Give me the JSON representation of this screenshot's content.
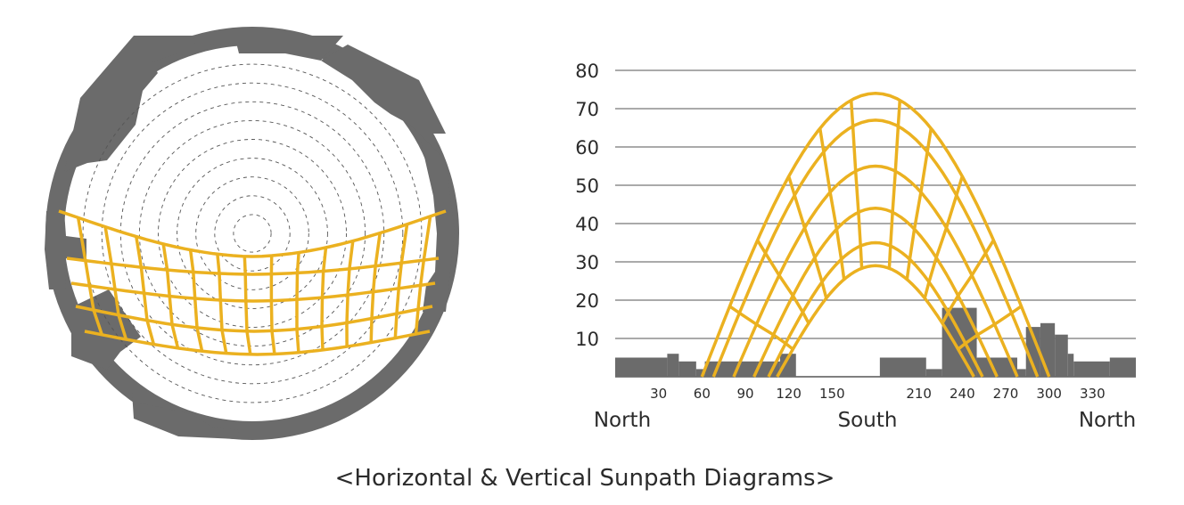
{
  "caption": "<Horizontal & Vertical Sunpath Diagrams>",
  "colors": {
    "sunpath": "#ebb120",
    "obstruction": "#6b6b6b",
    "ring": "#6b6b6b",
    "gridline": "#555555",
    "altitude_circles": "#555555"
  },
  "chart_data": [
    {
      "type": "diagram",
      "projection": "horizontal (polar) sunpath",
      "altitude_circle_count": 9,
      "sun_paths": 5,
      "hour_lines": 15,
      "obstruction": "surrounding buildings shown as grey silhouette around the sky dome"
    },
    {
      "type": "line",
      "projection": "vertical (cylindrical) sunpath",
      "ylim": [
        0,
        80
      ],
      "yticks": [
        "10",
        "20",
        "30",
        "40",
        "50",
        "60",
        "70",
        "80"
      ],
      "xticks": [
        "30",
        "60",
        "90",
        "120",
        "150",
        "210",
        "240",
        "270",
        "300",
        "330"
      ],
      "xtick_values": [
        30,
        60,
        90,
        120,
        150,
        210,
        240,
        270,
        300,
        330
      ],
      "xlim": [
        0,
        360
      ],
      "direction_labels": {
        "left": "North",
        "center": "South",
        "right": "North"
      },
      "sun_paths": [
        {
          "peak_altitude": 74,
          "sunrise_azimuth": 60,
          "sunset_azimuth": 300
        },
        {
          "peak_altitude": 67,
          "sunrise_azimuth": 68,
          "sunset_azimuth": 292
        },
        {
          "peak_altitude": 55,
          "sunrise_azimuth": 82,
          "sunset_azimuth": 278
        },
        {
          "peak_altitude": 44,
          "sunrise_azimuth": 96,
          "sunset_azimuth": 264
        },
        {
          "peak_altitude": 35,
          "sunrise_azimuth": 106,
          "sunset_azimuth": 254
        },
        {
          "peak_altitude": 29,
          "sunrise_azimuth": 112,
          "sunset_azimuth": 248
        }
      ],
      "obstruction_profile": [
        {
          "azimuth_from": 0,
          "azimuth_to": 36,
          "altitude": 5
        },
        {
          "azimuth_from": 36,
          "azimuth_to": 44,
          "altitude": 6
        },
        {
          "azimuth_from": 44,
          "azimuth_to": 56,
          "altitude": 4
        },
        {
          "azimuth_from": 56,
          "azimuth_to": 62,
          "altitude": 2
        },
        {
          "azimuth_from": 62,
          "azimuth_to": 98,
          "altitude": 4
        },
        {
          "azimuth_from": 98,
          "azimuth_to": 114,
          "altitude": 4
        },
        {
          "azimuth_from": 114,
          "azimuth_to": 125,
          "altitude": 6
        },
        {
          "azimuth_from": 183,
          "azimuth_to": 215,
          "altitude": 5
        },
        {
          "azimuth_from": 215,
          "azimuth_to": 226,
          "altitude": 2
        },
        {
          "azimuth_from": 226,
          "azimuth_to": 250,
          "altitude": 18
        },
        {
          "azimuth_from": 250,
          "azimuth_to": 278,
          "altitude": 5
        },
        {
          "azimuth_from": 278,
          "azimuth_to": 284,
          "altitude": 2
        },
        {
          "azimuth_from": 284,
          "azimuth_to": 294,
          "altitude": 13
        },
        {
          "azimuth_from": 294,
          "azimuth_to": 304,
          "altitude": 14
        },
        {
          "azimuth_from": 304,
          "azimuth_to": 313,
          "altitude": 11
        },
        {
          "azimuth_from": 313,
          "azimuth_to": 317,
          "altitude": 6
        },
        {
          "azimuth_from": 317,
          "azimuth_to": 342,
          "altitude": 4
        },
        {
          "azimuth_from": 342,
          "azimuth_to": 360,
          "altitude": 5
        }
      ]
    }
  ]
}
